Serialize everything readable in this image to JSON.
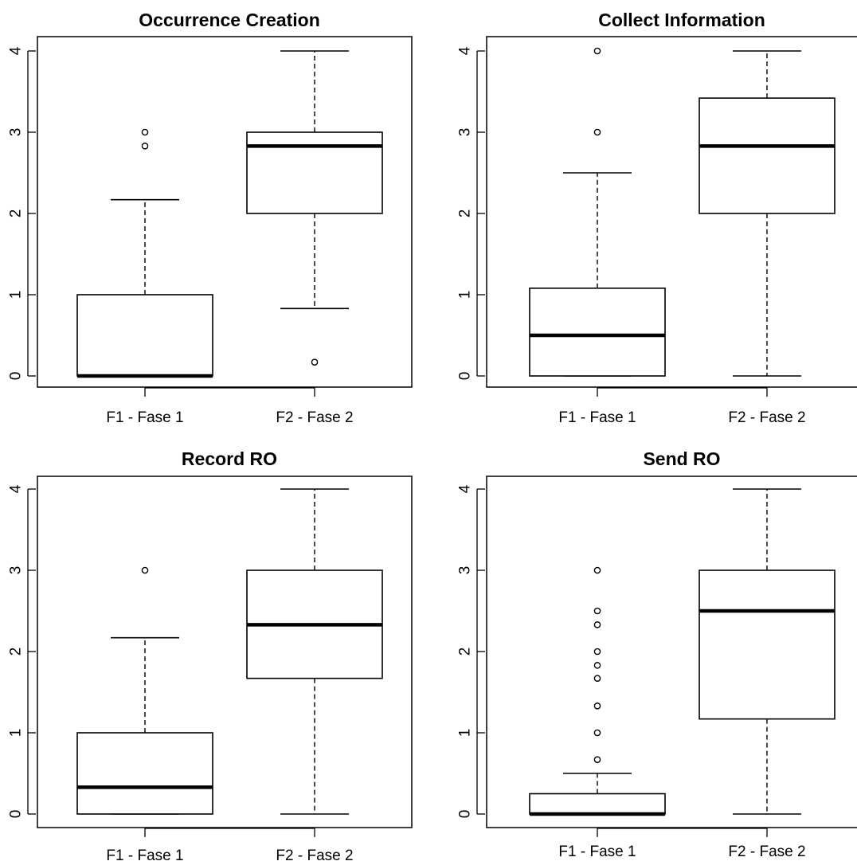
{
  "chart_data": [
    {
      "type": "box",
      "title": "Occurrence Creation",
      "categories": [
        "F1 - Fase 1",
        "F2 - Fase 2"
      ],
      "ylim": [
        0,
        4
      ],
      "yticks": [
        "0",
        "1",
        "2",
        "3",
        "4"
      ],
      "boxes": [
        {
          "name": "F1 - Fase 1",
          "whisker_low": 0,
          "q1": 0,
          "median": 0,
          "q3": 1,
          "whisker_high": 2.17,
          "outliers": [
            2.83,
            3
          ]
        },
        {
          "name": "F2 - Fase 2",
          "whisker_low": 0.83,
          "q1": 2,
          "median": 2.83,
          "q3": 3,
          "whisker_high": 4,
          "outliers": [
            0.17
          ]
        }
      ]
    },
    {
      "type": "box",
      "title": "Collect Information",
      "categories": [
        "F1 - Fase 1",
        "F2 - Fase 2"
      ],
      "ylim": [
        0,
        4
      ],
      "yticks": [
        "0",
        "1",
        "2",
        "3",
        "4"
      ],
      "boxes": [
        {
          "name": "F1 - Fase 1",
          "whisker_low": 0,
          "q1": 0,
          "median": 0.5,
          "q3": 1.08,
          "whisker_high": 2.5,
          "outliers": [
            3,
            4
          ]
        },
        {
          "name": "F2 - Fase 2",
          "whisker_low": 0,
          "q1": 2,
          "median": 2.83,
          "q3": 3.42,
          "whisker_high": 4,
          "outliers": []
        }
      ]
    },
    {
      "type": "box",
      "title": "Record RO",
      "categories": [
        "F1 - Fase 1",
        "F2 - Fase 2"
      ],
      "ylim": [
        0,
        4
      ],
      "yticks": [
        "0",
        "1",
        "2",
        "3",
        "4"
      ],
      "boxes": [
        {
          "name": "F1 - Fase 1",
          "whisker_low": 0,
          "q1": 0,
          "median": 0.33,
          "q3": 1,
          "whisker_high": 2.17,
          "outliers": [
            3
          ]
        },
        {
          "name": "F2 - Fase 2",
          "whisker_low": 0,
          "q1": 1.67,
          "median": 2.33,
          "q3": 3,
          "whisker_high": 4,
          "outliers": []
        }
      ]
    },
    {
      "type": "box",
      "title": "Send RO",
      "categories": [
        "F1 - Fase 1",
        "F2 - Fase 2"
      ],
      "ylim": [
        0,
        4
      ],
      "yticks": [
        "0",
        "1",
        "2",
        "3",
        "4"
      ],
      "boxes": [
        {
          "name": "F1 - Fase 1",
          "whisker_low": 0,
          "q1": 0,
          "median": 0,
          "q3": 0.25,
          "whisker_high": 0.5,
          "outliers": [
            0.67,
            1,
            1.33,
            1.67,
            1.83,
            2,
            2.33,
            2.5,
            3
          ]
        },
        {
          "name": "F2 - Fase 2",
          "whisker_low": 0,
          "q1": 1.17,
          "median": 2.5,
          "q3": 3,
          "whisker_high": 4,
          "outliers": []
        }
      ]
    }
  ]
}
